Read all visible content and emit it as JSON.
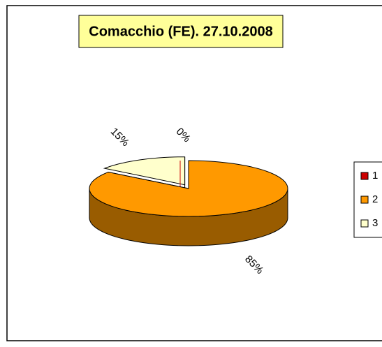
{
  "chart_data": {
    "type": "pie3d",
    "title": "Comacchio (FE). 27.10.2008",
    "categories": [
      "1",
      "2",
      "3"
    ],
    "values": [
      0,
      85,
      15
    ],
    "value_labels": [
      "0%",
      "85%",
      "15%"
    ],
    "colors": [
      "#cc0000",
      "#ff9900",
      "#ffffcc"
    ],
    "legend": "right"
  }
}
